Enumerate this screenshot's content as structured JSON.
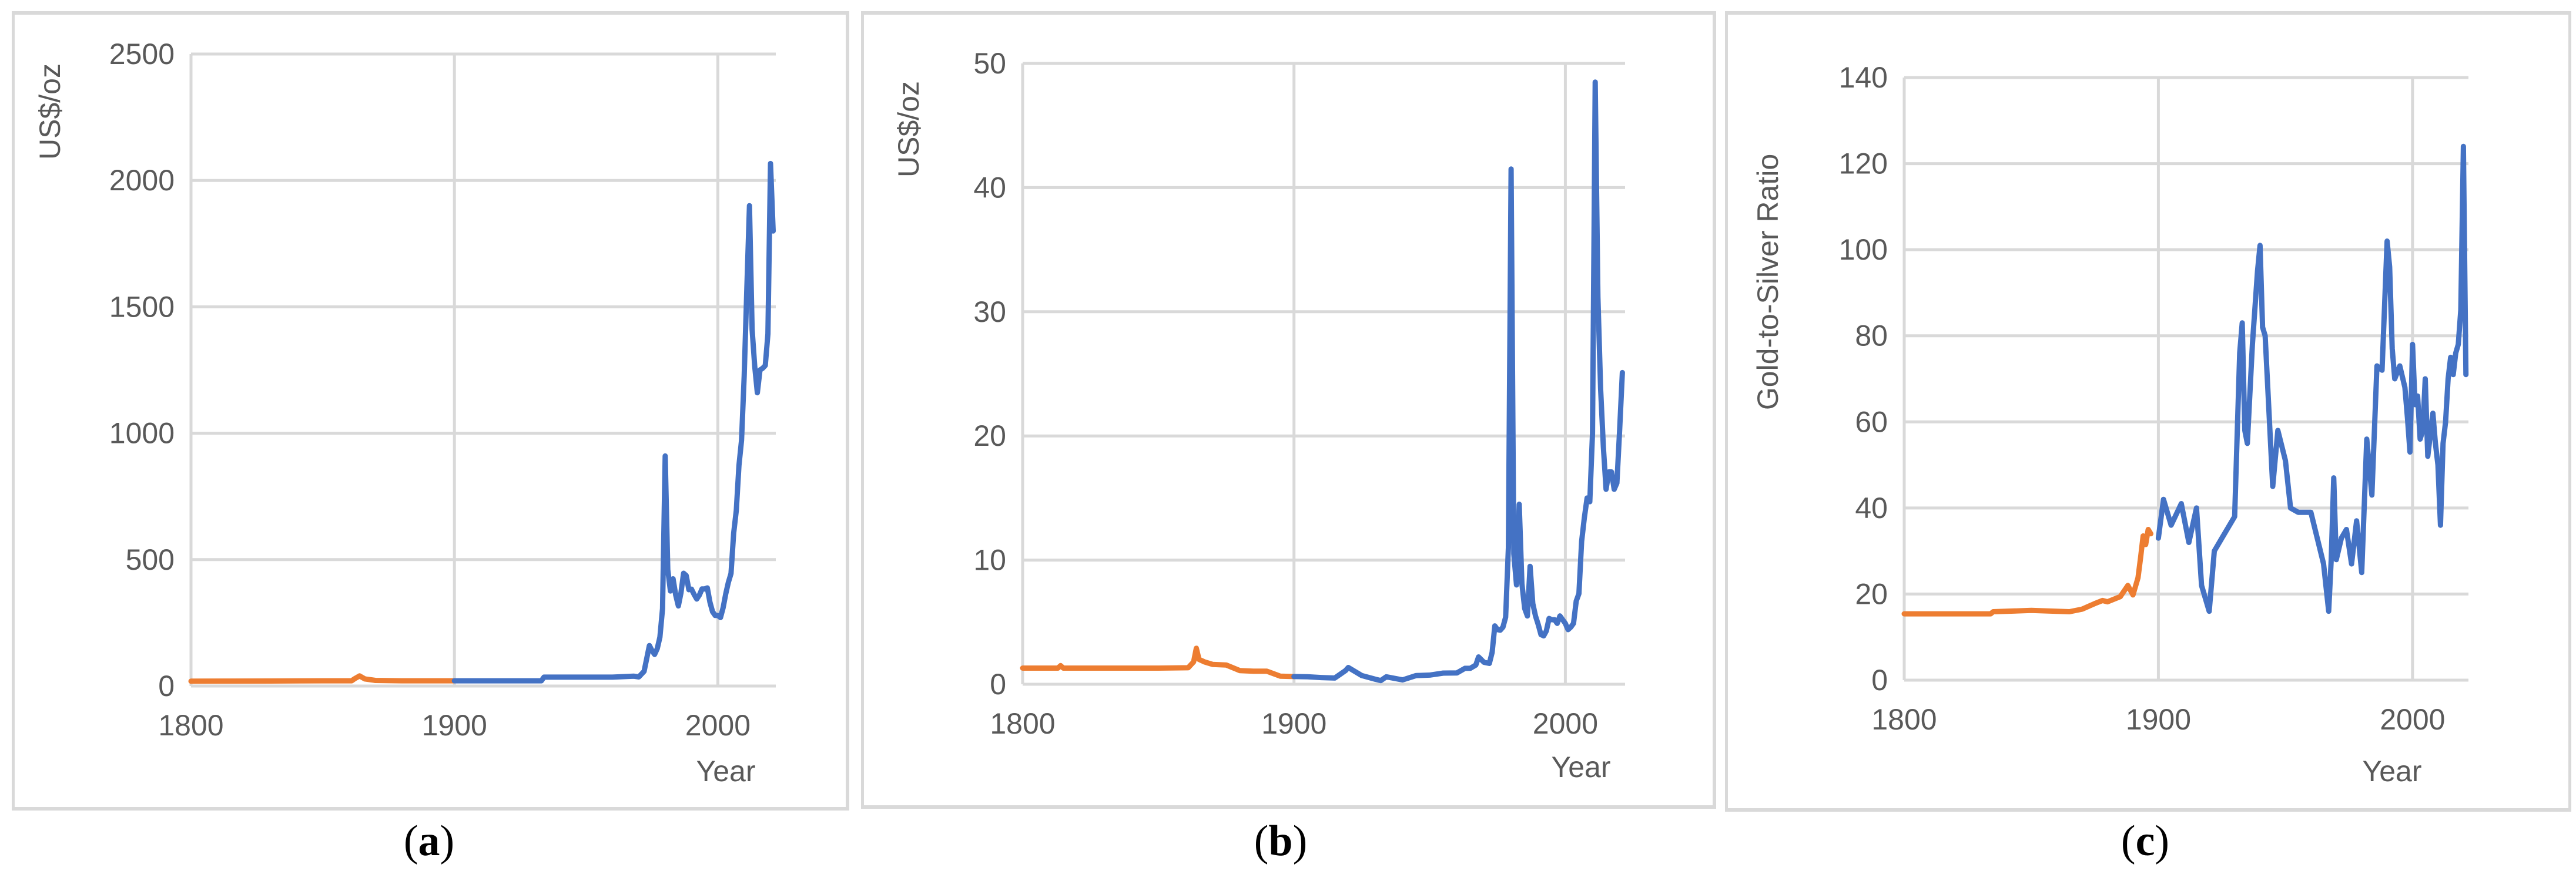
{
  "colors": {
    "historical": "#ed7d31",
    "modern": "#4472c4"
  },
  "captions": [
    {
      "open": "(",
      "letter": "a",
      "close": ")"
    },
    {
      "open": "(",
      "letter": "b",
      "close": ")"
    },
    {
      "open": "(",
      "letter": "c",
      "close": ")"
    }
  ],
  "chart_data": [
    {
      "type": "line",
      "xlabel": "Year",
      "ylabel": "US$/oz",
      "xlim": [
        1800,
        2022
      ],
      "ylim": [
        0,
        2500
      ],
      "xticks": [
        1800,
        1900,
        2000
      ],
      "yticks": [
        0,
        500,
        1000,
        1500,
        2000,
        2500
      ],
      "grid": true,
      "series": [
        {
          "color": "historical",
          "x": [
            1800,
            1815,
            1830,
            1850,
            1861,
            1862,
            1864,
            1866,
            1870,
            1880,
            1890,
            1900
          ],
          "y": [
            19,
            19.5,
            19.7,
            20.6,
            20.6,
            28,
            40,
            28,
            22,
            20.7,
            20.7,
            20.7
          ]
        },
        {
          "color": "modern",
          "x": [
            1900,
            1933,
            1934,
            1960,
            1968,
            1970,
            1972,
            1974,
            1975,
            1976,
            1977,
            1978,
            1979,
            1980,
            1981,
            1982,
            1983,
            1984,
            1985,
            1986,
            1987,
            1988,
            1989,
            1990,
            1991,
            1992,
            1993,
            1994,
            1995,
            1996,
            1997,
            1998,
            1999,
            2000,
            2001,
            2002,
            2003,
            2004,
            2005,
            2006,
            2007,
            2008,
            2009,
            2010,
            2011,
            2012,
            2013,
            2014,
            2015,
            2016,
            2017,
            2018,
            2019,
            2020,
            2021
          ],
          "y": [
            20.7,
            20.7,
            35,
            35,
            39,
            36,
            58,
            160,
            140,
            125,
            148,
            193,
            306,
            910,
            460,
            376,
            424,
            360,
            317,
            368,
            446,
            437,
            381,
            383,
            362,
            344,
            360,
            384,
            384,
            388,
            331,
            294,
            279,
            279,
            271,
            310,
            364,
            410,
            445,
            604,
            695,
            872,
            972,
            1225,
            1570,
            1900,
            1411,
            1266,
            1160,
            1250,
            1257,
            1268,
            1393,
            2067,
            1800
          ]
        }
      ]
    },
    {
      "type": "line",
      "xlabel": "Year",
      "ylabel": "US$/oz",
      "xlim": [
        1800,
        2022
      ],
      "ylim": [
        0,
        50
      ],
      "xticks": [
        1800,
        1900,
        2000
      ],
      "yticks": [
        0,
        10,
        20,
        30,
        40,
        50
      ],
      "grid": true,
      "series": [
        {
          "color": "historical",
          "x": [
            1800,
            1813,
            1814,
            1815,
            1830,
            1850,
            1861,
            1863,
            1864,
            1865,
            1867,
            1870,
            1875,
            1880,
            1885,
            1890,
            1895,
            1900
          ],
          "y": [
            1.3,
            1.3,
            1.5,
            1.3,
            1.3,
            1.3,
            1.33,
            1.8,
            2.9,
            2.0,
            1.8,
            1.6,
            1.55,
            1.1,
            1.05,
            1.05,
            0.65,
            0.62
          ]
        },
        {
          "color": "modern",
          "x": [
            1900,
            1905,
            1910,
            1915,
            1919,
            1920,
            1925,
            1930,
            1932,
            1934,
            1940,
            1945,
            1950,
            1955,
            1960,
            1963,
            1965,
            1967,
            1968,
            1970,
            1972,
            1973,
            1974,
            1975,
            1976,
            1977,
            1978,
            1979,
            1980,
            1981,
            1982,
            1983,
            1984,
            1985,
            1986,
            1987,
            1988,
            1989,
            1990,
            1991,
            1992,
            1993,
            1994,
            1995,
            1996,
            1997,
            1998,
            1999,
            2000,
            2001,
            2002,
            2003,
            2004,
            2005,
            2006,
            2007,
            2008,
            2009,
            2010,
            2011,
            2012,
            2013,
            2014,
            2015,
            2016,
            2017,
            2018,
            2019,
            2020,
            2021
          ],
          "y": [
            0.62,
            0.6,
            0.54,
            0.5,
            1.1,
            1.35,
            0.7,
            0.4,
            0.3,
            0.6,
            0.35,
            0.7,
            0.74,
            0.9,
            0.91,
            1.28,
            1.29,
            1.55,
            2.2,
            1.77,
            1.68,
            2.56,
            4.7,
            4.4,
            4.35,
            4.6,
            5.4,
            11.0,
            41.5,
            10.5,
            8.0,
            14.5,
            8.1,
            6.1,
            5.5,
            9.5,
            6.5,
            5.5,
            4.8,
            4.0,
            3.9,
            4.3,
            5.3,
            5.2,
            5.2,
            4.9,
            5.5,
            5.2,
            4.9,
            4.4,
            4.6,
            4.9,
            6.7,
            7.3,
            11.5,
            13.4,
            15.0,
            14.7,
            20.2,
            48.5,
            31.2,
            23.8,
            19.1,
            15.7,
            17.1,
            17.1,
            15.7,
            16.2,
            20.5,
            25.1
          ]
        }
      ]
    },
    {
      "type": "line",
      "xlabel": "Year",
      "ylabel": "Gold-to-Silver Ratio",
      "xlim": [
        1800,
        2022
      ],
      "ylim": [
        0,
        140
      ],
      "xticks": [
        1800,
        1900,
        2000
      ],
      "yticks": [
        0,
        20,
        40,
        60,
        80,
        100,
        120,
        140
      ],
      "grid": true,
      "series": [
        {
          "color": "historical",
          "x": [
            1800,
            1834,
            1835,
            1850,
            1865,
            1870,
            1875,
            1878,
            1880,
            1885,
            1888,
            1890,
            1892,
            1893,
            1894,
            1895,
            1896,
            1897
          ],
          "y": [
            15.4,
            15.4,
            15.9,
            16.2,
            15.9,
            16.5,
            17.8,
            18.5,
            18.2,
            19.4,
            22.0,
            19.8,
            23.8,
            28.5,
            33.5,
            31.5,
            35.0,
            34.0
          ]
        },
        {
          "color": "modern",
          "x": [
            1900,
            1902,
            1905,
            1909,
            1912,
            1915,
            1917,
            1920,
            1922,
            1925,
            1930,
            1932,
            1933,
            1934,
            1935,
            1937,
            1939,
            1940,
            1941,
            1942,
            1945,
            1947,
            1950,
            1952,
            1955,
            1960,
            1965,
            1967,
            1968,
            1969,
            1970,
            1972,
            1974,
            1976,
            1978,
            1980,
            1982,
            1984,
            1986,
            1988,
            1990,
            1991,
            1992,
            1993,
            1995,
            1997,
            1998,
            1999,
            2000,
            2001,
            2002,
            2003,
            2004,
            2005,
            2006,
            2007,
            2008,
            2009,
            2010,
            2011,
            2012,
            2013,
            2014,
            2015,
            2016,
            2017,
            2018,
            2019,
            2020,
            2021
          ],
          "y": [
            33,
            42,
            36,
            41,
            32,
            40,
            22,
            16,
            30,
            33,
            38,
            76,
            83,
            58,
            55,
            78,
            95,
            101,
            82,
            80,
            45,
            58,
            51,
            40,
            39,
            39,
            27,
            16,
            28,
            47,
            28,
            33,
            35,
            27,
            37,
            25,
            56,
            43,
            73,
            72,
            102,
            96,
            77,
            70,
            73,
            68,
            61,
            53,
            78,
            64,
            66,
            56,
            58,
            70,
            52,
            57,
            62,
            55,
            50,
            36,
            55,
            60,
            70,
            75,
            71,
            76,
            78,
            86,
            124,
            71
          ]
        }
      ]
    }
  ]
}
